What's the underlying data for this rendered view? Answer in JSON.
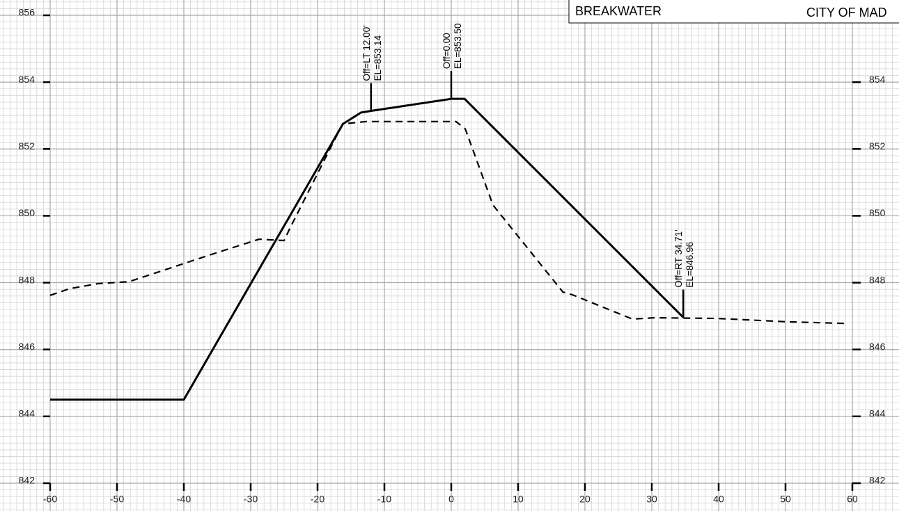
{
  "chart_data": {
    "type": "line",
    "title": "BREAKWATER",
    "subtitle": "CITY OF MAD",
    "xlim": [
      -60,
      60
    ],
    "xticks": [
      -60,
      -50,
      -40,
      -30,
      -20,
      -10,
      0,
      10,
      20,
      30,
      40,
      50,
      60
    ],
    "ylim": [
      842,
      856
    ],
    "yticks": [
      842,
      844,
      846,
      848,
      850,
      852,
      854,
      856
    ],
    "grid": true,
    "series": [
      {
        "color": "#000000",
        "dash": "solid",
        "x": [
          -60,
          -40,
          -16.2,
          -13.5,
          -12,
          0,
          2,
          34.71
        ],
        "values": [
          844.5,
          844.5,
          852.75,
          853.09,
          853.14,
          853.5,
          853.5,
          846.96
        ]
      },
      {
        "color": "#000000",
        "dash": "dashed",
        "x": [
          -60,
          -57.1,
          -52.9,
          -48.2,
          -43.5,
          -36.25,
          -28.75,
          -25,
          -24.2,
          -16.25,
          -12.8,
          0.7,
          2.1,
          6.25,
          16.7,
          18.1,
          27.1,
          30.4,
          39.8,
          50.2,
          58.9
        ],
        "values": [
          847.62,
          847.82,
          847.97,
          848.03,
          848.34,
          848.82,
          849.3,
          849.26,
          849.6,
          852.75,
          852.82,
          852.82,
          852.6,
          850.32,
          847.72,
          847.64,
          846.91,
          846.95,
          846.93,
          846.83,
          846.78
        ]
      }
    ],
    "annotations": [
      {
        "x": -12,
        "y": 853.14,
        "lines": [
          "Off=LT 12.00'",
          "EL=853.14"
        ]
      },
      {
        "x": 0,
        "y": 853.5,
        "lines": [
          "Off=0.00",
          "EL=853.50"
        ]
      },
      {
        "x": 34.71,
        "y": 846.96,
        "lines": [
          "Off=RT 34.71'",
          "EL=846.96"
        ]
      }
    ]
  }
}
